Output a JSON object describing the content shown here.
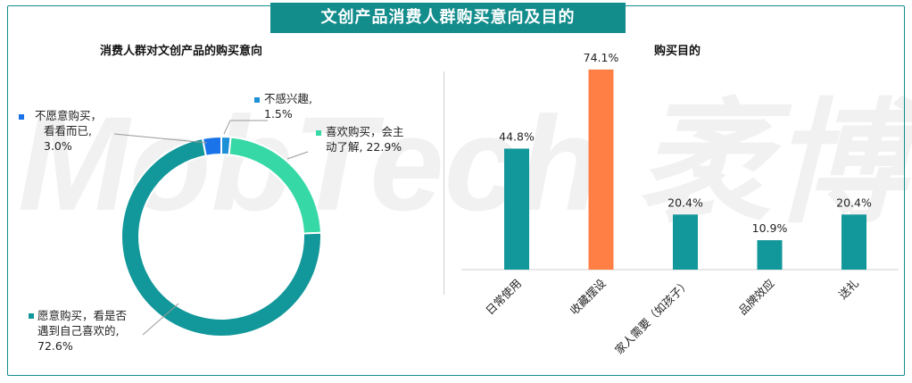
{
  "header": {
    "title": "文创产品消费人群购买意向及目的"
  },
  "watermark": {
    "text": "MobTech 袤博"
  },
  "left_chart": {
    "subtitle": "消费人群对文创产品的购买意向"
  },
  "right_chart": {
    "subtitle": "购买目的"
  },
  "colors": {
    "teal": "#12979a",
    "light_teal": "#36d9a6",
    "blue": "#1a73e8",
    "sky": "#1e90d8",
    "orange": "#ff7f45"
  },
  "chart_data": [
    {
      "type": "pie",
      "title": "消费人群对文创产品的购买意向",
      "donut": true,
      "slices": [
        {
          "label_lines": [
            "不感兴趣,",
            "1.5%"
          ],
          "value": 1.5,
          "color": "#1e90d8"
        },
        {
          "label_lines": [
            "喜欢购买，会主",
            "动了解, 22.9%"
          ],
          "value": 22.9,
          "color": "#36d9a6"
        },
        {
          "label_lines": [
            "愿意购买，看是否",
            "遇到自己喜欢的,",
            "72.6%"
          ],
          "value": 72.6,
          "color": "#12979a"
        },
        {
          "label_lines": [
            "不愿意购买，",
            "看看而已,",
            "3.0%"
          ],
          "value": 3.0,
          "color": "#1a73e8"
        }
      ]
    },
    {
      "type": "bar",
      "title": "购买目的",
      "categories": [
        "日常使用",
        "收藏摆设",
        "家人需要（如孩子）",
        "品牌效应",
        "送礼"
      ],
      "values": [
        44.8,
        74.1,
        20.4,
        10.9,
        20.4
      ],
      "value_labels": [
        "44.8%",
        "74.1%",
        "20.4%",
        "10.9%",
        "20.4%"
      ],
      "colors": [
        "#12979a",
        "#ff7f45",
        "#12979a",
        "#12979a",
        "#12979a"
      ],
      "ylim": [
        0,
        80
      ]
    }
  ]
}
